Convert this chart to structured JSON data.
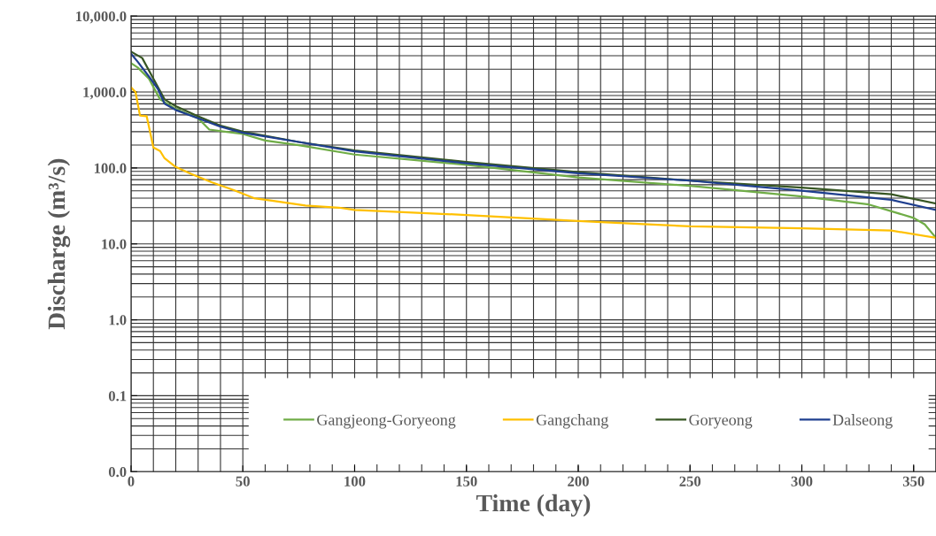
{
  "chart_data": {
    "type": "line",
    "xlabel": "Time (day)",
    "ylabel": "Discharge (m³/s)",
    "log": "y",
    "grid": true,
    "legend": "bottom right",
    "line_style": "solid",
    "marker": "none",
    "xlim": [
      0,
      360
    ],
    "xticks": [
      0,
      50,
      100,
      150,
      200,
      250,
      300,
      350
    ],
    "ylim": [
      0.01,
      10000
    ],
    "yticks": [
      {
        "value": 0.01,
        "label": "0.0"
      },
      {
        "value": 0.1,
        "label": "0.1"
      },
      {
        "value": 1,
        "label": "1.0"
      },
      {
        "value": 10,
        "label": "10.0"
      },
      {
        "value": 100,
        "label": "100.0"
      },
      {
        "value": 1000,
        "label": "1,000.0"
      },
      {
        "value": 10000,
        "label": "10,000.0"
      }
    ],
    "series": [
      {
        "name": "Gangjeong-Goryeong",
        "color": "#70ad47",
        "x": [
          0,
          3,
          8,
          13,
          20,
          30,
          35,
          50,
          60,
          75,
          100,
          150,
          200,
          250,
          300,
          330,
          350,
          355,
          360
        ],
        "values": [
          2400,
          2100,
          1500,
          800,
          600,
          450,
          320,
          280,
          230,
          200,
          150,
          110,
          75,
          58,
          42,
          33,
          22,
          18,
          12
        ]
      },
      {
        "name": "Gangchang",
        "color": "#ffc000",
        "x": [
          0,
          2,
          4,
          7,
          10,
          13,
          15,
          20,
          27,
          36,
          46,
          55,
          63,
          78,
          93,
          100,
          150,
          200,
          250,
          300,
          340,
          360
        ],
        "values": [
          1150,
          1000,
          490,
          480,
          186,
          167,
          134,
          103,
          83,
          65,
          51,
          40,
          37,
          32,
          30,
          28,
          24,
          20,
          17,
          16,
          15,
          12
        ]
      },
      {
        "name": "Goryeong",
        "color": "#375623",
        "x": [
          0,
          5,
          10,
          15,
          20,
          30,
          40,
          50,
          75,
          100,
          150,
          200,
          250,
          300,
          340,
          360
        ],
        "values": [
          3400,
          2800,
          1500,
          800,
          650,
          480,
          360,
          300,
          220,
          170,
          120,
          88,
          68,
          55,
          45,
          34
        ]
      },
      {
        "name": "Dalseong",
        "color": "#1f3f8f",
        "x": [
          0,
          3,
          8,
          12,
          15,
          20,
          30,
          40,
          50,
          75,
          100,
          150,
          200,
          250,
          300,
          340,
          360
        ],
        "values": [
          3200,
          2500,
          1600,
          1100,
          700,
          580,
          450,
          350,
          290,
          220,
          165,
          115,
          85,
          68,
          50,
          38,
          28
        ]
      }
    ]
  }
}
